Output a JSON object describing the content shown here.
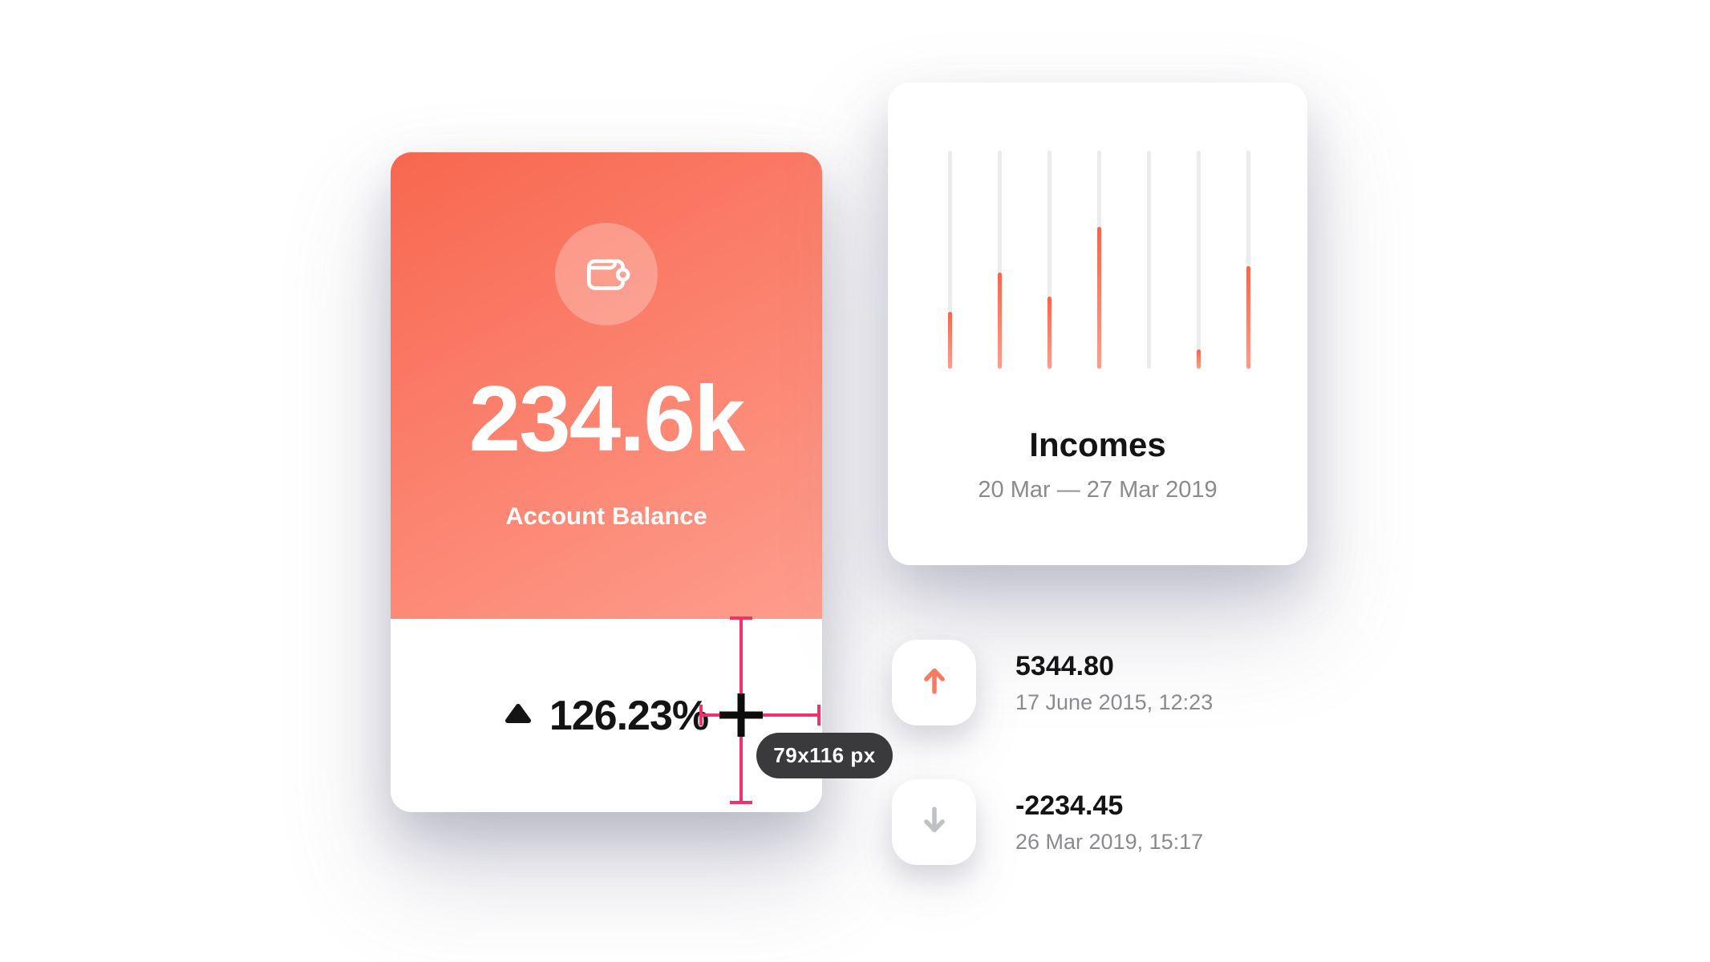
{
  "colors": {
    "card-gradient-top": "#F8674F",
    "card-gradient-bottom": "#FE9D8D",
    "bar-fill-top": "#F5674C",
    "bar-fill-bottom": "#FC9D8D",
    "bar-track": "#ECECEF",
    "measure-pink": "#F2336B",
    "tooltip-bg": "#3A3A3C",
    "up-arrow": "#F87A60",
    "down-arrow": "#BFC1C5",
    "text-dark": "#141414",
    "text-gray": "#8A8B8F"
  },
  "balance_card": {
    "icon": "wallet-icon",
    "amount": "234.6k",
    "label": "Account Balance",
    "change": "126.23%",
    "change_direction": "up"
  },
  "incomes_card": {
    "title": "Incomes",
    "date_range": "20 Mar — 27 Mar 2019"
  },
  "chart_data": {
    "type": "bar",
    "title": "Incomes",
    "subtitle": "20 Mar — 27 Mar 2019",
    "bar_count": 7,
    "values_pct_of_track": [
      26,
      44,
      33,
      65,
      0,
      9,
      47
    ],
    "track_full_pct": 100,
    "grid": false,
    "orientation": "vertical",
    "note": "thin rounded tracks with coral fills rising from baseline"
  },
  "measurement": {
    "size_label": "79x116 px"
  },
  "transactions": [
    {
      "direction": "up",
      "amount": "5344.80",
      "datetime": "17 June 2015, 12:23"
    },
    {
      "direction": "down",
      "amount": "-2234.45",
      "datetime": "26 Mar 2019, 15:17"
    }
  ]
}
